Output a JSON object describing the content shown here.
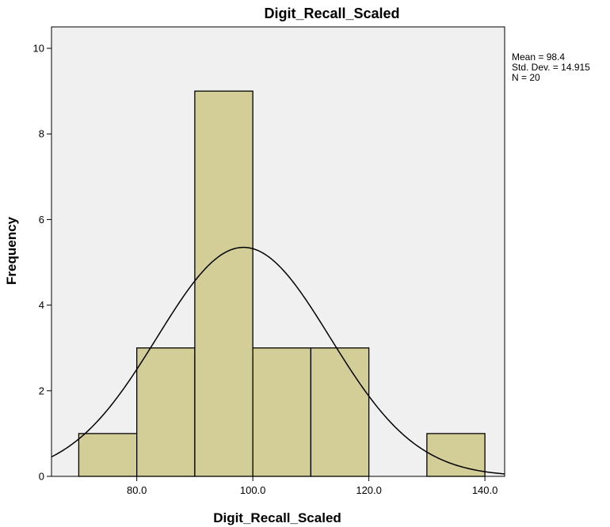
{
  "chart_data": {
    "type": "bar",
    "subtype": "histogram",
    "title": "Digit_Recall_Scaled",
    "xlabel": "Digit_Recall_Scaled",
    "ylabel": "Frequency",
    "bins": [
      {
        "start": 70,
        "end": 80,
        "count": 1
      },
      {
        "start": 80,
        "end": 90,
        "count": 3
      },
      {
        "start": 90,
        "end": 100,
        "count": 9
      },
      {
        "start": 100,
        "end": 110,
        "count": 3
      },
      {
        "start": 110,
        "end": 120,
        "count": 3
      },
      {
        "start": 120,
        "end": 130,
        "count": 0
      },
      {
        "start": 130,
        "end": 140,
        "count": 1
      }
    ],
    "xlim": [
      65.3,
      143.4
    ],
    "ylim": [
      0,
      10.5
    ],
    "xticks": [
      {
        "value": 80,
        "label": "80.0"
      },
      {
        "value": 100,
        "label": "100.0"
      },
      {
        "value": 120,
        "label": "120.0"
      },
      {
        "value": 140,
        "label": "140.0"
      }
    ],
    "yticks": [
      {
        "value": 0,
        "label": "0"
      },
      {
        "value": 2,
        "label": "2"
      },
      {
        "value": 4,
        "label": "4"
      },
      {
        "value": 6,
        "label": "6"
      },
      {
        "value": 8,
        "label": "8"
      },
      {
        "value": 10,
        "label": "10"
      }
    ],
    "normal_curve": {
      "mean": 98.4,
      "sd": 14.915,
      "n": 20,
      "bin_width": 10
    },
    "stats_text": [
      "Mean = 98.4",
      "Std. Dev. = 14.915",
      "N = 20"
    ],
    "grid": false,
    "legend": "none",
    "colors": {
      "plot_background": "#f0f0f0",
      "bar_fill": "#d3ce97",
      "bar_stroke": "#000000",
      "curve": "#000000"
    }
  }
}
